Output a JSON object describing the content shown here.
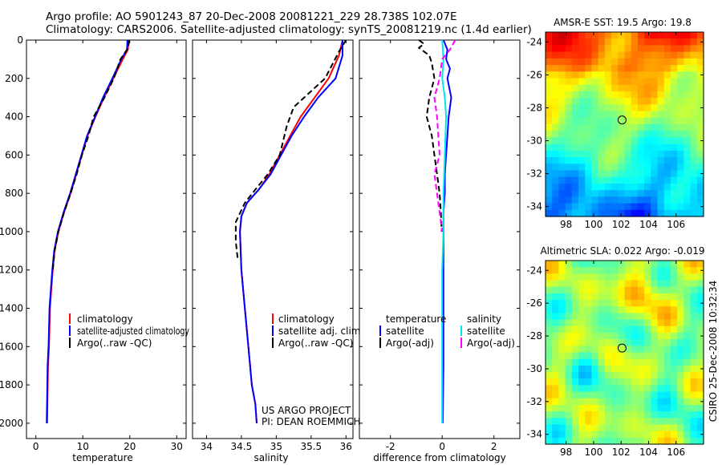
{
  "header": {
    "line1": "Argo profile: AO 5901243_87 20-Dec-2008 20081221_229 28.738S 102.07E",
    "line2": "Climatology: CARS2006. Satellite-adjusted climatology: synTS_20081219.nc (1.4d earlier)"
  },
  "colors": {
    "clim": "#ff0000",
    "sat": "#0000ff",
    "argo": "#000000",
    "sat_sal": "#00e5ee",
    "argo_sal": "#ff00ff"
  },
  "chart_data": [
    {
      "type": "line",
      "id": "temperature",
      "xlabel": "temperature",
      "ylabel": "",
      "xlim": [
        -2,
        32
      ],
      "ylim": [
        2080,
        0
      ],
      "yreversed": true,
      "xticks": [
        "0",
        "10",
        "20",
        "30"
      ],
      "yticks": [
        "0",
        "200",
        "400",
        "600",
        "800",
        "1000",
        "1200",
        "1400",
        "1600",
        "1800",
        "2000"
      ],
      "legend": [
        "climatology",
        "satellite-adjusted climatology",
        "Argo(..raw -QC)"
      ],
      "legend_position": "lower-right",
      "series": [
        {
          "name": "climatology",
          "style": "solid",
          "x": [
            19.8,
            19.6,
            18.5,
            16.5,
            14.5,
            12.7,
            11.0,
            9.8,
            8.6,
            7.4,
            6.0,
            4.8,
            4.0,
            3.6,
            3.3,
            3.0,
            2.8,
            2.6,
            2.5,
            2.4
          ],
          "y": [
            0,
            50,
            100,
            200,
            300,
            400,
            500,
            600,
            700,
            800,
            900,
            1000,
            1100,
            1200,
            1300,
            1400,
            1600,
            1700,
            1850,
            2000
          ]
        },
        {
          "name": "satellite",
          "style": "solid",
          "x": [
            19.5,
            19.4,
            18.2,
            16.3,
            14.3,
            12.6,
            10.9,
            9.7,
            8.5,
            7.3,
            5.9,
            4.7,
            3.9,
            3.5,
            3.2,
            2.9,
            2.7,
            2.5,
            2.4,
            2.3
          ],
          "y": [
            0,
            50,
            100,
            200,
            300,
            400,
            500,
            600,
            700,
            800,
            900,
            1000,
            1100,
            1200,
            1300,
            1400,
            1600,
            1700,
            1850,
            2000
          ]
        },
        {
          "name": "argo",
          "style": "dashed",
          "x": [
            19.8,
            19.7,
            18.0,
            16.6,
            14.6,
            12.3,
            11.2,
            9.8,
            8.7,
            7.4,
            6.0,
            4.8,
            4.0,
            3.6
          ],
          "y": [
            0,
            40,
            100,
            200,
            300,
            400,
            500,
            600,
            700,
            800,
            900,
            1000,
            1100,
            1200
          ]
        }
      ]
    },
    {
      "type": "line",
      "id": "salinity",
      "xlabel": "salinity",
      "xlim": [
        33.8,
        36.1
      ],
      "ylim": [
        2080,
        0
      ],
      "yreversed": true,
      "xticks": [
        "34",
        "34.5",
        "35",
        "35.5",
        "36"
      ],
      "legend": [
        "climatology",
        "satellite adj. clim.",
        "Argo(..raw -QC)"
      ],
      "legend_position": "lower-right",
      "credit": [
        "US ARGO PROJECT",
        "PI: DEAN ROEMMICH"
      ],
      "series": [
        {
          "name": "climatology",
          "style": "solid",
          "x": [
            35.95,
            35.9,
            35.75,
            35.55,
            35.35,
            35.2,
            35.05,
            34.9,
            34.75,
            34.58,
            34.5,
            34.48,
            34.5,
            34.55,
            34.6,
            34.65,
            34.7,
            34.72
          ],
          "y": [
            0,
            80,
            200,
            300,
            400,
            500,
            600,
            700,
            780,
            850,
            920,
            1000,
            1200,
            1400,
            1600,
            1800,
            1900,
            2000
          ]
        },
        {
          "name": "satellite",
          "style": "solid",
          "x": [
            35.95,
            35.95,
            35.85,
            35.6,
            35.4,
            35.22,
            35.07,
            34.92,
            34.75,
            34.58,
            34.5,
            34.48,
            34.5,
            34.55,
            34.6,
            34.65,
            34.7,
            34.72
          ],
          "y": [
            0,
            80,
            200,
            300,
            400,
            500,
            600,
            700,
            780,
            850,
            920,
            1000,
            1200,
            1400,
            1600,
            1800,
            1900,
            2000
          ]
        },
        {
          "name": "argo",
          "style": "dashed",
          "x": [
            36.0,
            35.9,
            35.7,
            35.4,
            35.25,
            35.15,
            35.05,
            34.88,
            34.7,
            34.55,
            34.42,
            34.42,
            34.45
          ],
          "y": [
            0,
            60,
            200,
            300,
            350,
            450,
            600,
            700,
            780,
            850,
            950,
            1050,
            1150
          ]
        }
      ]
    },
    {
      "type": "line",
      "id": "difference",
      "xlabel": "difference from climatology",
      "xlim": [
        -3.2,
        3.0
      ],
      "ylim": [
        2080,
        0
      ],
      "yreversed": true,
      "xticks": [
        "-2",
        "0",
        "2"
      ],
      "legend": [
        "temperature",
        "satellite",
        "Argo(-adj)",
        "salinity",
        "satellite",
        "Argo(-adj)"
      ],
      "legend_position": "lower-center",
      "series": [
        {
          "name": "temperature satellite",
          "style": "solid",
          "x": [
            0.05,
            0.2,
            0.15,
            0.3,
            0.2,
            0.35,
            0.25,
            0.2,
            0.15,
            0.1,
            0.1,
            0.05,
            0.05,
            0.05,
            0.05,
            0.05,
            0.03,
            0.02
          ],
          "y": [
            0,
            50,
            100,
            150,
            200,
            300,
            400,
            500,
            600,
            700,
            800,
            900,
            1100,
            1300,
            1500,
            1700,
            1900,
            2000
          ]
        },
        {
          "name": "temperature argo",
          "style": "dashed",
          "x": [
            -0.9,
            -0.7,
            -0.9,
            -0.5,
            -0.4,
            -0.3,
            -0.5,
            -0.6,
            -0.4,
            -0.3,
            -0.2,
            -0.1,
            -0.05,
            -0.02
          ],
          "y": [
            0,
            20,
            40,
            80,
            120,
            200,
            300,
            400,
            500,
            600,
            700,
            800,
            900,
            1000
          ]
        },
        {
          "name": "salinity satellite",
          "style": "solid",
          "x": [
            0.0,
            0.05,
            0.0,
            0.1,
            0.15,
            0.1,
            0.05,
            0.05,
            0.0,
            0.0,
            0.0
          ],
          "y": [
            0,
            100,
            200,
            300,
            400,
            600,
            800,
            1000,
            1200,
            1600,
            2000
          ]
        },
        {
          "name": "salinity argo",
          "style": "dashed",
          "x": [
            0.5,
            0.3,
            0.0,
            -0.1,
            -0.3,
            -0.2,
            -0.15,
            -0.1,
            -0.3,
            -0.2,
            -0.1,
            0.0
          ],
          "y": [
            0,
            50,
            100,
            200,
            300,
            400,
            500,
            600,
            700,
            800,
            900,
            1000
          ]
        }
      ]
    },
    {
      "type": "heatmap",
      "id": "sst",
      "title": "AMSR-E SST: 19.5 Argo: 19.8",
      "xlim": [
        96.5,
        108
      ],
      "ylim": [
        -34.6,
        -23.4
      ],
      "xticks": [
        "98",
        "100",
        "102",
        "104",
        "106"
      ],
      "yticks": [
        "-24",
        "-26",
        "-28",
        "-30",
        "-32",
        "-34"
      ],
      "marker": {
        "lon": 102.07,
        "lat": -28.738
      },
      "colormap": "jet"
    },
    {
      "type": "heatmap",
      "id": "sla",
      "title": "Altimetric SLA: 0.022 Argo: -0.019",
      "side_label": "CSIRO 25-Dec-2008 10:32:34",
      "xlim": [
        96.5,
        108
      ],
      "ylim": [
        -34.6,
        -23.4
      ],
      "xticks": [
        "98",
        "100",
        "102",
        "104",
        "106"
      ],
      "yticks": [
        "-24",
        "-26",
        "-28",
        "-30",
        "-32",
        "-34"
      ],
      "marker": {
        "lon": 102.07,
        "lat": -28.738
      },
      "colormap": "jet"
    }
  ]
}
